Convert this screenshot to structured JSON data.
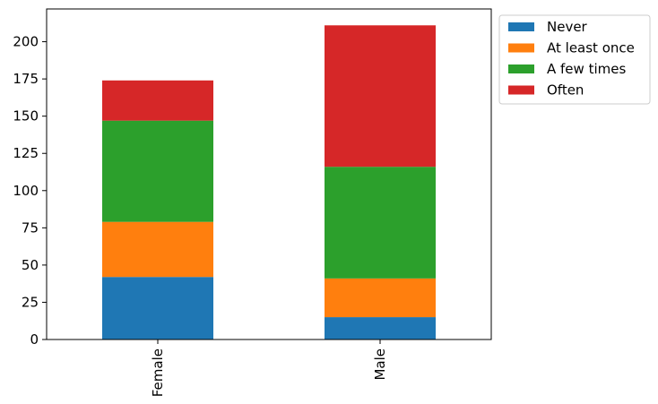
{
  "chart_data": {
    "type": "bar",
    "stacked": true,
    "orientation": "vertical",
    "categories": [
      "Female",
      "Male"
    ],
    "series": [
      {
        "name": "Never",
        "color": "#1f77b4",
        "values": [
          42,
          15
        ]
      },
      {
        "name": "At least once",
        "color": "#ff7f0e",
        "values": [
          37,
          26
        ]
      },
      {
        "name": "A few times",
        "color": "#2ca02c",
        "values": [
          68,
          75
        ]
      },
      {
        "name": "Often",
        "color": "#d62728",
        "values": [
          27,
          95
        ]
      }
    ],
    "title": "",
    "xlabel": "",
    "ylabel": "",
    "ylim": [
      0,
      222
    ],
    "yticks": [
      0,
      25,
      50,
      75,
      100,
      125,
      150,
      175,
      200
    ],
    "x_tick_rotation": 90,
    "grid": false,
    "legend_position": "outside-top-right"
  }
}
